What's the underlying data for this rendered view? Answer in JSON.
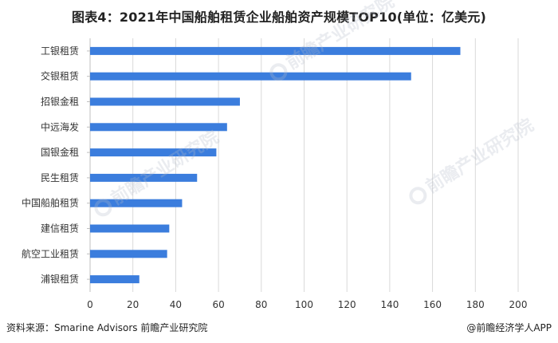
{
  "title": "图表4：2021年中国船舶租赁企业船舶资产规模TOP10(单位：亿美元)",
  "source": "资料来源：Smarine Advisors 前瞻产业研究院",
  "brand": "@前瞻经济学人APP",
  "watermark_text": "前瞻产业研究院",
  "colors": {
    "bar": "#3b7ddd",
    "grid": "#d9d9d9",
    "axis": "#bfbfbf",
    "label": "#333333"
  },
  "chart_data": {
    "type": "bar",
    "orientation": "horizontal",
    "title": "图表4：2021年中国船舶租赁企业船舶资产规模TOP10(单位：亿美元)",
    "categories": [
      "工银租赁",
      "交银租赁",
      "招银金租",
      "中远海发",
      "国银金租",
      "民生租赁",
      "中国船舶租赁",
      "建信租赁",
      "航空工业租赁",
      "浦银租赁"
    ],
    "values": [
      173,
      150,
      70,
      64,
      59,
      50,
      43,
      37,
      36,
      23
    ],
    "xlim": [
      0,
      200
    ],
    "xticks": [
      0,
      20,
      40,
      60,
      80,
      100,
      120,
      140,
      160,
      180,
      200
    ],
    "grid": "vertical",
    "legend": "none"
  }
}
